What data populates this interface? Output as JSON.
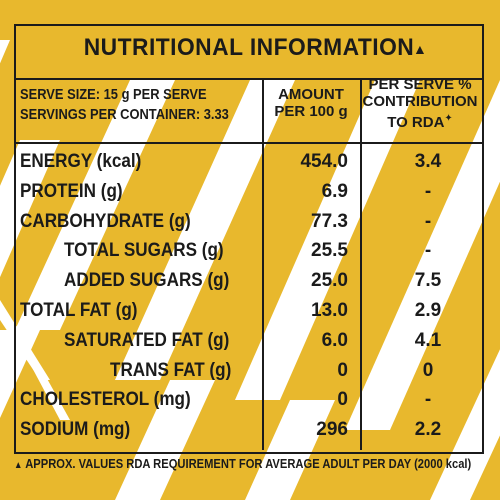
{
  "colors": {
    "background": "#e8b82d",
    "stripe": "#ffffff",
    "text": "#1b1b1b"
  },
  "title": "NUTRITIONAL INFORMATION",
  "header": {
    "serve_size": "SERVE SIZE: 15 g PER SERVE",
    "servings": "SERVINGS PER CONTAINER: 3.33",
    "amount_line1": "AMOUNT",
    "amount_line2": "PER 100 g",
    "rda_line1": "PER SERVE %",
    "rda_line2": "CONTRIBUTION",
    "rda_line3": "TO RDA"
  },
  "rows": [
    {
      "name": "ENERGY (kcal)",
      "amount": "454.0",
      "rda": "3.4",
      "indent": 0
    },
    {
      "name": "PROTEIN (g)",
      "amount": "6.9",
      "rda": "-",
      "indent": 0
    },
    {
      "name": "CARBOHYDRATE (g)",
      "amount": "77.3",
      "rda": "-",
      "indent": 0
    },
    {
      "name": "TOTAL SUGARS (g)",
      "amount": "25.5",
      "rda": "-",
      "indent": 1
    },
    {
      "name": "ADDED SUGARS (g)",
      "amount": "25.0",
      "rda": "7.5",
      "indent": 1
    },
    {
      "name": "TOTAL FAT (g)",
      "amount": "13.0",
      "rda": "2.9",
      "indent": 0
    },
    {
      "name": "SATURATED FAT (g)",
      "amount": "6.0",
      "rda": "4.1",
      "indent": 1
    },
    {
      "name": "TRANS FAT (g)",
      "amount": "0",
      "rda": "0",
      "indent": 2
    },
    {
      "name": "CHOLESTEROL (mg)",
      "amount": "0",
      "rda": "-",
      "indent": 0
    },
    {
      "name": "SODIUM (mg)",
      "amount": "296",
      "rda": "2.2",
      "indent": 0
    }
  ],
  "footnote": "APPROX. VALUES  RDA REQUIREMENT FOR AVERAGE ADULT PER DAY (2000 kcal)"
}
